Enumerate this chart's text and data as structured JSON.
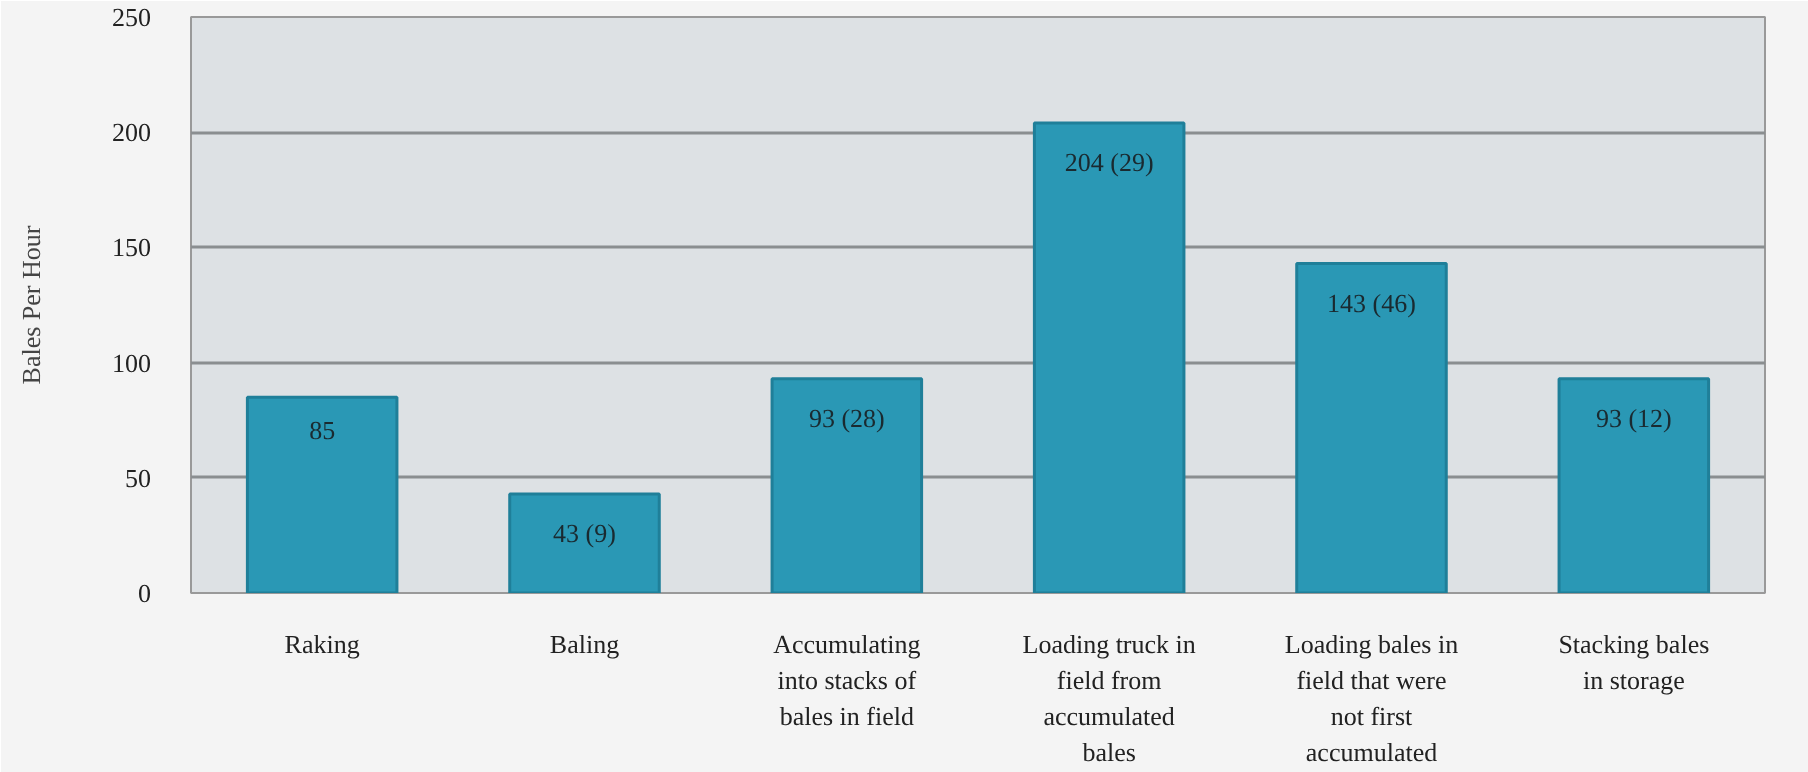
{
  "chart_data": {
    "type": "bar",
    "ylabel": "Bales Per Hour",
    "categories": [
      "Raking",
      "Baling",
      "Accumulating into stacks of bales in field",
      "Loading truck in field from accumulated bales",
      "Loading bales in field that were not first accumulated",
      "Stacking bales in storage"
    ],
    "values": [
      85,
      43,
      93,
      204,
      143,
      93
    ],
    "value_labels": [
      "85",
      "43 (9)",
      "93 (28)",
      "204 (29)",
      "143 (46)",
      "93 (12)"
    ],
    "color": "#2a98b5",
    "ylim": [
      0,
      250
    ],
    "yticks": [
      0,
      50,
      100,
      150,
      200,
      250
    ],
    "grid": "y"
  }
}
